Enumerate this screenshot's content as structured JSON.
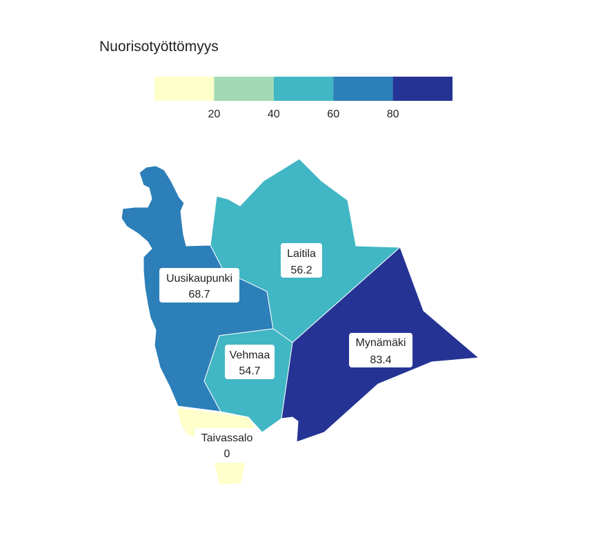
{
  "map": {
    "title": "Nuorisotyöttömyys",
    "legend": {
      "bins": [
        {
          "from": 0,
          "to": 20,
          "color": "#ffffcc"
        },
        {
          "from": 20,
          "to": 40,
          "color": "#a1dab4"
        },
        {
          "from": 40,
          "to": 60,
          "color": "#41b6c4"
        },
        {
          "from": 60,
          "to": 80,
          "color": "#2c7fb8"
        },
        {
          "from": 80,
          "to": 100,
          "color": "#253494"
        }
      ],
      "ticks": [
        "20",
        "40",
        "60",
        "80"
      ]
    },
    "regions": [
      {
        "id": "uusikaupunki",
        "name": "Uusikaupunki",
        "value": "68.7",
        "color": "#2c7fb8"
      },
      {
        "id": "laitila",
        "name": "Laitila",
        "value": "56.2",
        "color": "#41b6c4"
      },
      {
        "id": "vehmaa",
        "name": "Vehmaa",
        "value": "54.7",
        "color": "#41b6c4"
      },
      {
        "id": "mynamaki",
        "name": "Mynämäki",
        "value": "83.4",
        "color": "#253494"
      },
      {
        "id": "taivassalo",
        "name": "Taivassalo",
        "value": "0",
        "color": "#ffffcc"
      }
    ]
  }
}
